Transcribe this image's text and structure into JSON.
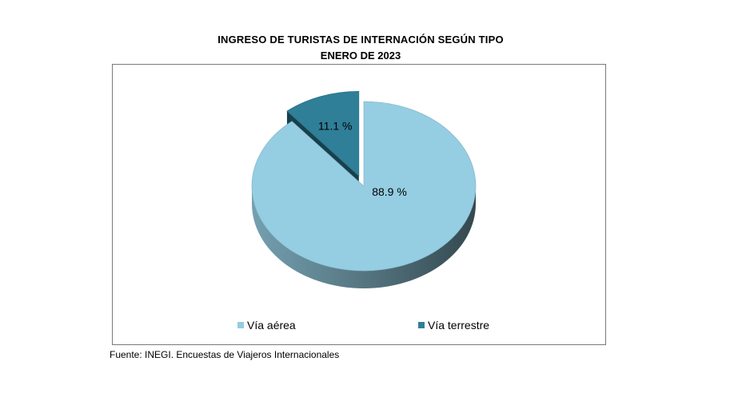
{
  "title": "INGRESO DE TURISTAS DE INTERNACIÓN SEGÚN TIPO",
  "subtitle": "ENERO DE 2023",
  "source": "Fuente: INEGI. Encuestas de Viajeros Internacionales",
  "chart_data": {
    "type": "pie",
    "title": "INGRESO DE TURISTAS DE INTERNACIÓN SEGÚN TIPO",
    "subtitle": "ENERO DE 2023",
    "style": "3d-exploded",
    "legend_position": "bottom",
    "slices": [
      {
        "name": "Vía aérea",
        "value": 88.9,
        "label": "88.9 %",
        "color": "#95cde2"
      },
      {
        "name": "Vía terrestre",
        "value": 11.1,
        "label": "11.1 %",
        "color": "#2f7f98"
      }
    ]
  }
}
